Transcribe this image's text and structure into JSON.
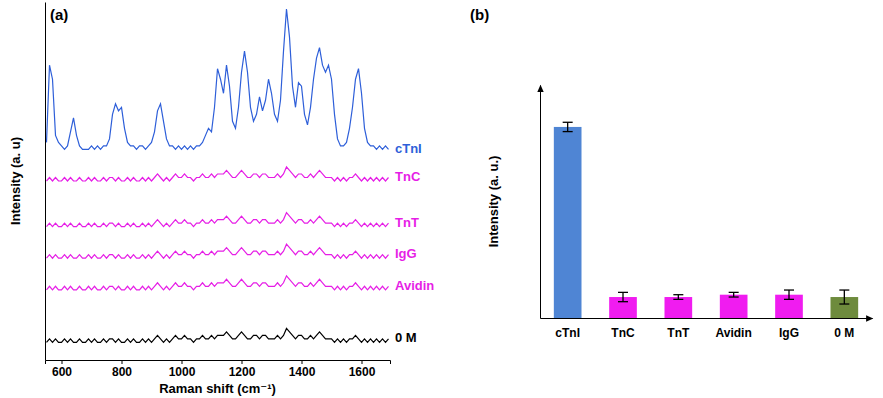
{
  "chart_data": [
    {
      "type": "line",
      "title": "(a)",
      "x_label": "Raman shift (cm⁻¹)",
      "y_label": "Intensity (a. u)",
      "tick_labels": "x",
      "xlim": [
        545,
        1695
      ],
      "xticks": [
        600,
        800,
        1000,
        1200,
        1400,
        1600
      ],
      "ylim": [
        0,
        102
      ],
      "x": [
        550,
        560,
        570,
        580,
        590,
        600,
        610,
        620,
        630,
        640,
        650,
        660,
        670,
        680,
        690,
        700,
        710,
        720,
        730,
        740,
        750,
        760,
        770,
        780,
        790,
        800,
        810,
        820,
        830,
        840,
        850,
        860,
        870,
        880,
        890,
        900,
        910,
        920,
        930,
        940,
        950,
        960,
        970,
        980,
        990,
        1000,
        1010,
        1020,
        1030,
        1040,
        1050,
        1060,
        1070,
        1080,
        1090,
        1100,
        1110,
        1120,
        1130,
        1140,
        1150,
        1160,
        1170,
        1180,
        1190,
        1200,
        1210,
        1220,
        1230,
        1240,
        1250,
        1260,
        1270,
        1280,
        1290,
        1300,
        1310,
        1320,
        1330,
        1340,
        1350,
        1360,
        1370,
        1380,
        1390,
        1400,
        1410,
        1420,
        1430,
        1440,
        1450,
        1460,
        1470,
        1480,
        1490,
        1500,
        1510,
        1520,
        1530,
        1540,
        1550,
        1560,
        1570,
        1580,
        1590,
        1600,
        1610,
        1620,
        1630,
        1640,
        1650,
        1660,
        1670,
        1680,
        1690
      ],
      "series": [
        {
          "name": "cTnI",
          "color": "#2e5fd9",
          "values": [
            62,
            84,
            80,
            64,
            62,
            61,
            60,
            61,
            65,
            69,
            64,
            61,
            60,
            60,
            60,
            61,
            60,
            61,
            60,
            61,
            61,
            63,
            70,
            73,
            71,
            72,
            66,
            62,
            61,
            61,
            60,
            61,
            61,
            60,
            61,
            62,
            65,
            71,
            73,
            68,
            63,
            61,
            61,
            60,
            61,
            60,
            61,
            60,
            61,
            60,
            61,
            61,
            62,
            64,
            66,
            65,
            72,
            83,
            80,
            76,
            84,
            78,
            68,
            66,
            72,
            82,
            88,
            82,
            72,
            68,
            70,
            75,
            71,
            74,
            80,
            76,
            70,
            68,
            74,
            88,
            100,
            92,
            78,
            72,
            79,
            78,
            70,
            67,
            72,
            80,
            86,
            89,
            84,
            82,
            84,
            80,
            70,
            63,
            61,
            61,
            62,
            66,
            72,
            80,
            83,
            76,
            66,
            62,
            61,
            61,
            60,
            61,
            60,
            61,
            60
          ]
        },
        {
          "name": "TnC",
          "color": "#e61ee6",
          "values": [
            51,
            52,
            51,
            52,
            51,
            51,
            52,
            51,
            52,
            51,
            51,
            52,
            51,
            51,
            52,
            51,
            52,
            51,
            51,
            52,
            51,
            52,
            52,
            51,
            52,
            51,
            51,
            52,
            51,
            52,
            51,
            51,
            52,
            51,
            52,
            51,
            52,
            53,
            52,
            51,
            52,
            51,
            52,
            53,
            52,
            52,
            53,
            52,
            52,
            51,
            52,
            52,
            53,
            52,
            52,
            53,
            52,
            53,
            53,
            53,
            54,
            53,
            52,
            52,
            53,
            54,
            53,
            52,
            52,
            53,
            53,
            52,
            53,
            53,
            52,
            52,
            52,
            53,
            52,
            53,
            55,
            54,
            53,
            52,
            53,
            53,
            52,
            52,
            53,
            52,
            53,
            54,
            53,
            52,
            52,
            52,
            51,
            52,
            51,
            52,
            51,
            52,
            52,
            53,
            52,
            51,
            52,
            51,
            52,
            51,
            52,
            51,
            52,
            51,
            52
          ]
        },
        {
          "name": "TnT",
          "color": "#e61ee6",
          "values": [
            38,
            39,
            38,
            39,
            38,
            38,
            39,
            38,
            39,
            38,
            38,
            39,
            38,
            38,
            39,
            38,
            39,
            38,
            38,
            39,
            38,
            39,
            39,
            38,
            39,
            38,
            38,
            39,
            38,
            39,
            38,
            38,
            39,
            38,
            39,
            38,
            39,
            40,
            39,
            38,
            39,
            38,
            39,
            40,
            39,
            39,
            40,
            39,
            39,
            38,
            39,
            39,
            40,
            39,
            39,
            40,
            39,
            40,
            40,
            40,
            41,
            40,
            39,
            39,
            40,
            41,
            40,
            39,
            39,
            40,
            40,
            39,
            40,
            40,
            39,
            39,
            39,
            40,
            39,
            40,
            42,
            41,
            40,
            39,
            40,
            40,
            39,
            39,
            40,
            39,
            40,
            41,
            40,
            39,
            39,
            39,
            38,
            39,
            38,
            39,
            38,
            39,
            39,
            40,
            39,
            38,
            39,
            38,
            39,
            38,
            39,
            38,
            39,
            38,
            39
          ]
        },
        {
          "name": "IgG",
          "color": "#e61ee6",
          "values": [
            29,
            30,
            29,
            30,
            29,
            29,
            30,
            29,
            30,
            29,
            29,
            30,
            29,
            29,
            30,
            29,
            30,
            29,
            29,
            30,
            29,
            30,
            30,
            29,
            30,
            29,
            29,
            30,
            29,
            30,
            29,
            29,
            30,
            29,
            30,
            29,
            30,
            31,
            30,
            29,
            30,
            29,
            30,
            31,
            30,
            30,
            31,
            30,
            30,
            29,
            30,
            30,
            31,
            30,
            30,
            31,
            30,
            31,
            31,
            31,
            32,
            31,
            30,
            30,
            31,
            32,
            31,
            30,
            30,
            31,
            31,
            30,
            31,
            31,
            30,
            30,
            30,
            31,
            30,
            31,
            33,
            32,
            31,
            30,
            31,
            31,
            30,
            30,
            31,
            30,
            31,
            32,
            31,
            30,
            30,
            30,
            29,
            30,
            29,
            30,
            29,
            30,
            30,
            31,
            30,
            29,
            30,
            29,
            30,
            29,
            30,
            29,
            30,
            29,
            30
          ]
        },
        {
          "name": "Avidin",
          "color": "#e61ee6",
          "values": [
            20,
            21,
            20,
            21,
            20,
            20,
            21,
            20,
            21,
            20,
            20,
            21,
            20,
            20,
            21,
            20,
            21,
            20,
            20,
            21,
            20,
            21,
            21,
            20,
            21,
            20,
            20,
            21,
            20,
            21,
            20,
            20,
            21,
            20,
            21,
            20,
            21,
            22,
            21,
            20,
            21,
            20,
            21,
            22,
            21,
            21,
            22,
            21,
            21,
            20,
            21,
            21,
            22,
            21,
            21,
            22,
            21,
            22,
            22,
            22,
            23,
            22,
            21,
            21,
            22,
            23,
            22,
            21,
            21,
            22,
            22,
            21,
            22,
            22,
            21,
            21,
            21,
            22,
            21,
            22,
            24,
            23,
            22,
            21,
            22,
            22,
            21,
            21,
            22,
            21,
            22,
            23,
            22,
            21,
            21,
            21,
            20,
            21,
            20,
            21,
            20,
            21,
            21,
            22,
            21,
            20,
            21,
            20,
            21,
            20,
            21,
            20,
            21,
            20,
            21
          ]
        },
        {
          "name": "0 M",
          "color": "#000000",
          "values": [
            5,
            6,
            5,
            6,
            5,
            5,
            6,
            5,
            6,
            5,
            5,
            6,
            5,
            5,
            6,
            5,
            6,
            5,
            5,
            6,
            5,
            6,
            6,
            5,
            6,
            5,
            5,
            6,
            5,
            6,
            5,
            5,
            6,
            5,
            6,
            5,
            6,
            7,
            6,
            5,
            6,
            5,
            6,
            7,
            6,
            6,
            7,
            6,
            6,
            5,
            6,
            6,
            7,
            6,
            6,
            7,
            6,
            7,
            7,
            7,
            8,
            7,
            6,
            6,
            7,
            8,
            7,
            6,
            6,
            7,
            7,
            6,
            7,
            7,
            6,
            6,
            6,
            7,
            6,
            7,
            9,
            8,
            7,
            6,
            7,
            7,
            6,
            6,
            7,
            6,
            7,
            8,
            7,
            6,
            6,
            6,
            5,
            6,
            5,
            6,
            5,
            6,
            6,
            7,
            6,
            5,
            6,
            5,
            6,
            5,
            6,
            5,
            6,
            5,
            6
          ]
        }
      ]
    },
    {
      "type": "bar",
      "title": "(b)",
      "y_label": "Intensity (a. u.)",
      "tick_labels": "x",
      "categories": [
        "cTnI",
        "TnC",
        "TnT",
        "Avidin",
        "IgG",
        "0 M"
      ],
      "values": [
        82,
        9,
        9,
        10,
        10,
        9
      ],
      "errors": [
        2,
        2,
        1,
        1,
        2,
        3
      ],
      "colors": [
        "#4f85d4",
        "#f01cf0",
        "#f01cf0",
        "#f01cf0",
        "#f01cf0",
        "#6e8b3d"
      ],
      "ylim": [
        0,
        100
      ]
    }
  ]
}
